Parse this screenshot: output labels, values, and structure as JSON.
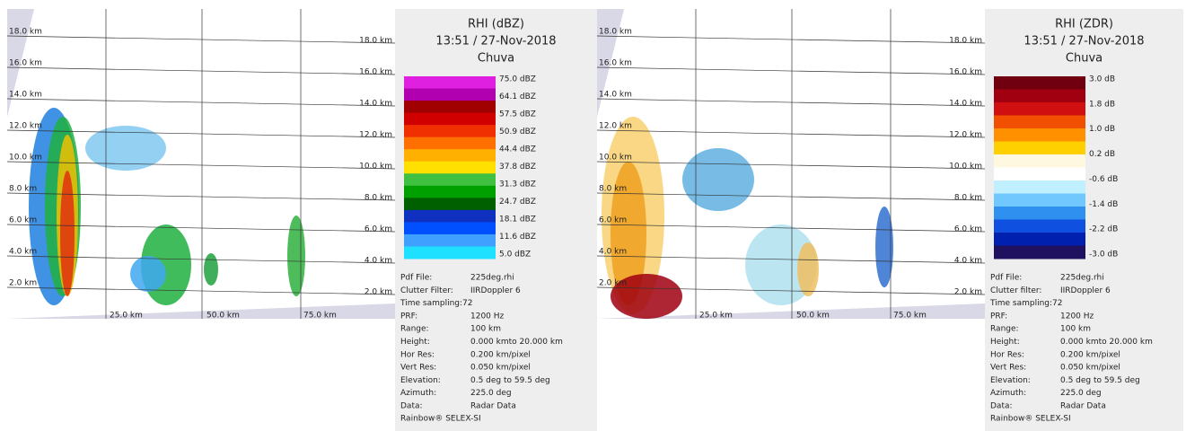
{
  "panels": [
    {
      "title": "RHI (dBZ)",
      "time": "13:51 / 27-Nov-2018",
      "subtitle": "Chuva",
      "colorbar": [
        "75.0 dBZ",
        "64.1 dBZ",
        "57.5 dBZ",
        "50.9 dBZ",
        "44.4 dBZ",
        "37.8 dBZ",
        "31.3 dBZ",
        "24.7 dBZ",
        "18.1 dBZ",
        "11.6 dBZ",
        "5.0 dBZ"
      ],
      "heights_left": [
        "18.0 km",
        "16.0 km",
        "14.0 km",
        "12.0 km",
        "10.0 km",
        "8.0 km",
        "6.0 km",
        "4.0 km",
        "2.0 km"
      ],
      "heights_right": [
        "18.0 km",
        "16.0 km",
        "14.0 km",
        "12.0 km",
        "10.0 km",
        "8.0 km",
        "6.0 km",
        "4.0 km",
        "2.0 km"
      ],
      "ranges": [
        "25.0 km",
        "50.0 km",
        "75.0 km"
      ],
      "info": [
        [
          "Pdf File:",
          "225deg.rhi"
        ],
        [
          "Clutter Filter:",
          "IIRDoppler 6"
        ],
        [
          "Time sampling:72",
          ""
        ],
        [
          "PRF:",
          "1200 Hz"
        ],
        [
          "Range:",
          "100 km"
        ],
        [
          "Height:",
          "0.000 kmto 20.000 km"
        ],
        [
          "Hor Res:",
          "0.200 km/pixel"
        ],
        [
          "Vert Res:",
          "0.050 km/pixel"
        ],
        [
          "Elevation:",
          "0.5 deg to 59.5 deg"
        ],
        [
          "Azimuth:",
          "225.0 deg"
        ],
        [
          "Data:",
          "Radar Data"
        ]
      ],
      "footer": "Rainbow® SELEX-SI"
    },
    {
      "title": "RHI (ZDR)",
      "time": "13:51 / 27-Nov-2018",
      "subtitle": "Chuva",
      "colorbar": [
        "3.0 dB",
        "1.8 dB",
        "1.0 dB",
        "0.2 dB",
        "-0.6 dB",
        "-1.4 dB",
        "-2.2 dB",
        "-3.0 dB"
      ],
      "heights_left": [
        "18.0 km",
        "16.0 km",
        "14.0 km",
        "12.0 km",
        "10.0 km",
        "8.0 km",
        "6.0 km",
        "4.0 km",
        "2.0 km"
      ],
      "heights_right": [
        "18.0 km",
        "16.0 km",
        "14.0 km",
        "12.0 km",
        "10.0 km",
        "8.0 km",
        "6.0 km",
        "4.0 km",
        "2.0 km"
      ],
      "ranges": [
        "25.0 km",
        "50.0 km",
        "75.0 km"
      ],
      "info": [
        [
          "Pdf File:",
          "225deg.rhi"
        ],
        [
          "Clutter filter:",
          "IIRDoppler 6"
        ],
        [
          "Time sampling:72",
          ""
        ],
        [
          "PRF:",
          "1200 Hz"
        ],
        [
          "Range:",
          "100 km"
        ],
        [
          "Height:",
          "0.000 kmto 20.000 km"
        ],
        [
          "Hor Res:",
          "0.200 km/pixel"
        ],
        [
          "Vert Res:",
          "0.050 km/pixel"
        ],
        [
          "Elevation:",
          "0.5 deg to 59.5 deg"
        ],
        [
          "Azimuth:",
          "225.0 deg"
        ],
        [
          "Data:",
          "Radar Data"
        ]
      ],
      "footer": "Rainbow® SELEX-SI"
    }
  ]
}
